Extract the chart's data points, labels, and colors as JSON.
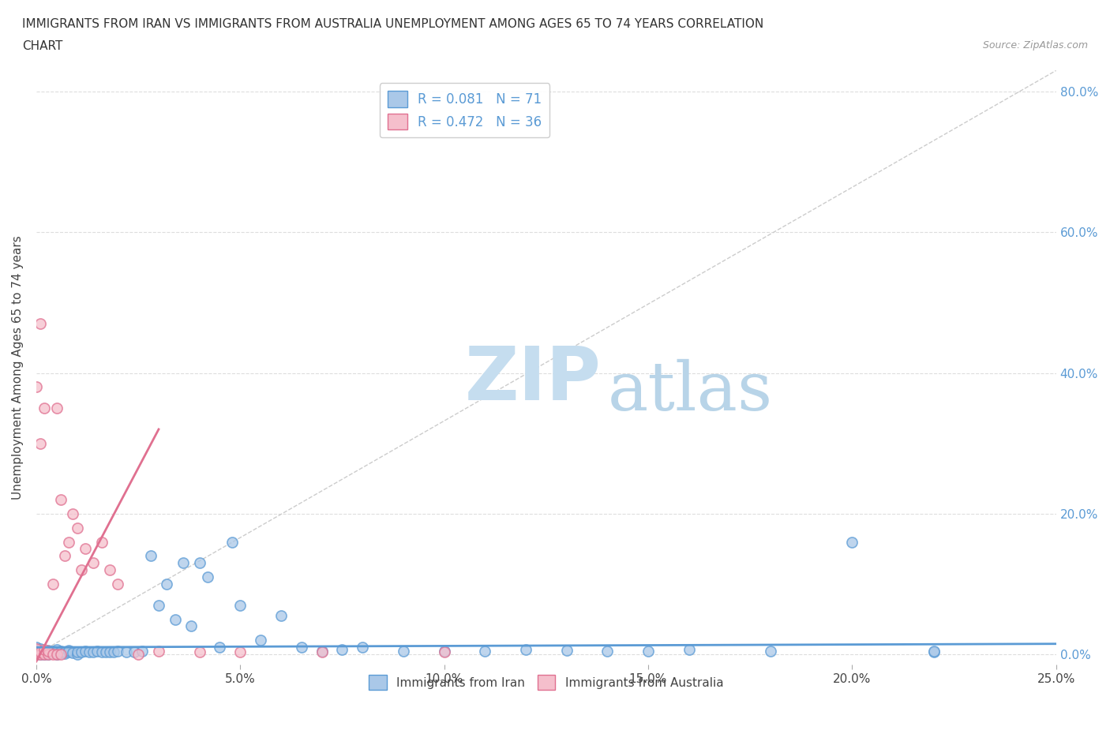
{
  "title_line1": "IMMIGRANTS FROM IRAN VS IMMIGRANTS FROM AUSTRALIA UNEMPLOYMENT AMONG AGES 65 TO 74 YEARS CORRELATION",
  "title_line2": "CHART",
  "source_text": "Source: ZipAtlas.com",
  "ylabel": "Unemployment Among Ages 65 to 74 years",
  "xmin": 0.0,
  "xmax": 0.25,
  "ymin": -0.015,
  "ymax": 0.83,
  "xtick_values": [
    0.0,
    0.05,
    0.1,
    0.15,
    0.2,
    0.25
  ],
  "xtick_labels": [
    "0.0%",
    "5.0%",
    "10.0%",
    "15.0%",
    "20.0%",
    "25.0%"
  ],
  "ytick_values": [
    0.0,
    0.2,
    0.4,
    0.6,
    0.8
  ],
  "ytick_labels_right": [
    "0.0%",
    "20.0%",
    "40.0%",
    "60.0%",
    "80.0%"
  ],
  "iran_color": "#aac8e8",
  "iran_edge_color": "#5b9bd5",
  "australia_color": "#f5bfcc",
  "australia_edge_color": "#e07090",
  "iran_R": 0.081,
  "iran_N": 71,
  "australia_R": 0.472,
  "australia_N": 36,
  "legend_label_iran": "Immigrants from Iran",
  "legend_label_australia": "Immigrants from Australia",
  "watermark_zip": "ZIP",
  "watermark_atlas": "atlas",
  "watermark_color_zip": "#c5ddef",
  "watermark_color_atlas": "#b8d4e8",
  "diag_line_color": "#cccccc",
  "iran_trend_color": "#5b9bd5",
  "australia_trend_color": "#e07090",
  "iran_scatter_x": [
    0.0,
    0.0,
    0.0,
    0.0,
    0.0,
    0.001,
    0.001,
    0.001,
    0.001,
    0.002,
    0.002,
    0.002,
    0.003,
    0.003,
    0.003,
    0.004,
    0.004,
    0.005,
    0.005,
    0.005,
    0.006,
    0.006,
    0.007,
    0.007,
    0.008,
    0.008,
    0.009,
    0.01,
    0.01,
    0.011,
    0.012,
    0.013,
    0.014,
    0.015,
    0.016,
    0.017,
    0.018,
    0.019,
    0.02,
    0.022,
    0.024,
    0.026,
    0.028,
    0.03,
    0.032,
    0.034,
    0.036,
    0.038,
    0.04,
    0.042,
    0.045,
    0.048,
    0.05,
    0.055,
    0.06,
    0.065,
    0.07,
    0.075,
    0.08,
    0.09,
    0.1,
    0.11,
    0.12,
    0.13,
    0.14,
    0.15,
    0.16,
    0.18,
    0.2,
    0.22,
    0.22
  ],
  "iran_scatter_y": [
    0.0,
    0.002,
    0.004,
    0.006,
    0.01,
    0.0,
    0.003,
    0.005,
    0.008,
    0.0,
    0.003,
    0.005,
    0.0,
    0.004,
    0.006,
    0.002,
    0.005,
    0.0,
    0.003,
    0.007,
    0.002,
    0.005,
    0.001,
    0.004,
    0.003,
    0.006,
    0.002,
    0.0,
    0.004,
    0.003,
    0.005,
    0.004,
    0.003,
    0.005,
    0.004,
    0.003,
    0.004,
    0.003,
    0.005,
    0.004,
    0.003,
    0.005,
    0.14,
    0.07,
    0.1,
    0.05,
    0.13,
    0.04,
    0.13,
    0.11,
    0.01,
    0.16,
    0.07,
    0.02,
    0.055,
    0.01,
    0.005,
    0.007,
    0.01,
    0.005,
    0.005,
    0.005,
    0.007,
    0.006,
    0.005,
    0.005,
    0.007,
    0.005,
    0.16,
    0.003,
    0.005
  ],
  "australia_scatter_x": [
    0.0,
    0.0,
    0.0,
    0.0,
    0.0,
    0.001,
    0.001,
    0.001,
    0.001,
    0.002,
    0.002,
    0.002,
    0.003,
    0.003,
    0.004,
    0.004,
    0.005,
    0.005,
    0.006,
    0.006,
    0.007,
    0.008,
    0.009,
    0.01,
    0.011,
    0.012,
    0.014,
    0.016,
    0.018,
    0.02,
    0.025,
    0.03,
    0.04,
    0.05,
    0.07,
    0.1
  ],
  "australia_scatter_y": [
    0.0,
    0.003,
    0.005,
    0.008,
    0.38,
    0.0,
    0.003,
    0.3,
    0.47,
    0.0,
    0.007,
    0.35,
    0.0,
    0.005,
    0.0,
    0.1,
    0.0,
    0.35,
    0.0,
    0.22,
    0.14,
    0.16,
    0.2,
    0.18,
    0.12,
    0.15,
    0.13,
    0.16,
    0.12,
    0.1,
    0.0,
    0.005,
    0.004,
    0.003,
    0.003,
    0.003
  ],
  "iran_trend_x": [
    0.0,
    0.25
  ],
  "iran_trend_y": [
    0.01,
    0.015
  ],
  "australia_trend_x": [
    0.0,
    0.03
  ],
  "australia_trend_y": [
    -0.01,
    0.32
  ]
}
